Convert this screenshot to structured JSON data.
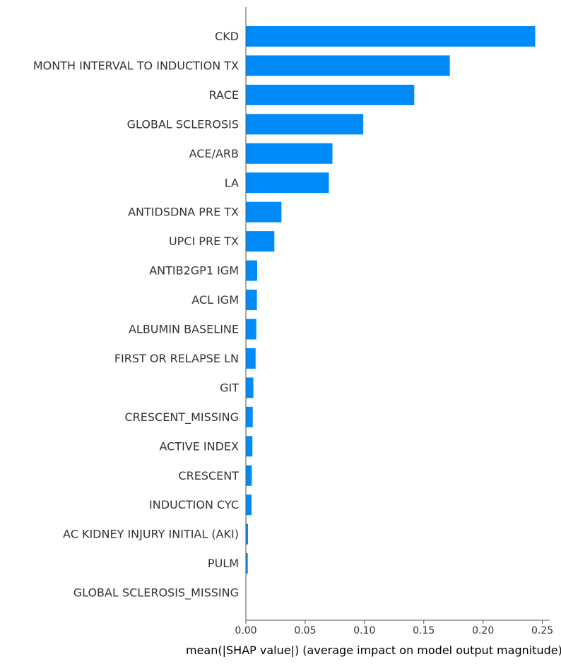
{
  "chart_data": {
    "type": "bar",
    "orientation": "horizontal",
    "categories": [
      "CKD",
      "MONTH INTERVAL TO INDUCTION TX",
      "RACE",
      "GLOBAL SCLEROSIS",
      "ACE/ARB",
      "LA",
      "ANTIDSDNA PRE TX",
      "UPCI PRE TX",
      "ANTIB2GP1 IGM",
      "ACL IGM",
      "ALBUMIN BASELINE",
      "FIRST OR RELAPSE LN",
      "GIT",
      "CRESCENT_MISSING",
      "ACTIVE INDEX",
      "CRESCENT",
      "INDUCTION CYC",
      "AC KIDNEY INJURY INITIAL (AKI)",
      "PULM",
      "GLOBAL SCLEROSIS_MISSING"
    ],
    "values": [
      0.244,
      0.172,
      0.142,
      0.099,
      0.073,
      0.07,
      0.03,
      0.024,
      0.0095,
      0.0093,
      0.0088,
      0.0082,
      0.0063,
      0.0058,
      0.0055,
      0.005,
      0.0048,
      0.0018,
      0.0016,
      0.0
    ],
    "xlabel": "mean(|SHAP value|) (average impact on model output magnitude)",
    "ylabel": "",
    "xlim": [
      0,
      0.256
    ],
    "xticks": [
      0.0,
      0.05,
      0.1,
      0.15,
      0.2,
      0.25
    ],
    "xtick_labels": [
      "0.00",
      "0.05",
      "0.10",
      "0.15",
      "0.20",
      "0.25"
    ],
    "bar_color": "#008bfb",
    "axis_color": "#555555",
    "grid": false
  }
}
